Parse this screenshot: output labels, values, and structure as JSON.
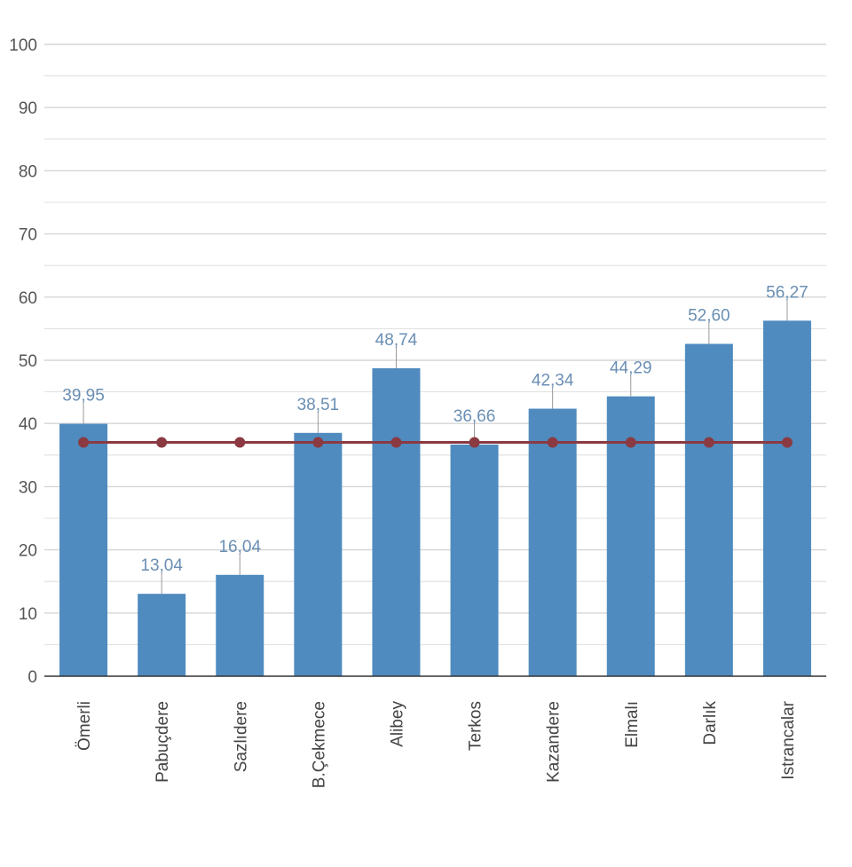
{
  "chart_data": {
    "type": "bar",
    "title": "",
    "xlabel": "",
    "ylabel": "",
    "ylim": [
      0,
      100
    ],
    "yticks": [
      0,
      10,
      20,
      30,
      40,
      50,
      60,
      70,
      80,
      90,
      100
    ],
    "grid": true,
    "categories": [
      "Ömerli",
      "Pabuçdere",
      "Sazlıdere",
      "B.Çekmece",
      "Alibey",
      "Terkos",
      "Kazandere",
      "Elmalı",
      "Darlık",
      "Istrancalar"
    ],
    "series": [
      {
        "type": "bar",
        "values": [
          39.95,
          13.04,
          16.04,
          38.51,
          48.74,
          36.66,
          42.34,
          44.29,
          52.6,
          56.27
        ],
        "labels": [
          "39,95",
          "13,04",
          "16,04",
          "38,51",
          "48,74",
          "36,66",
          "42,34",
          "44,29",
          "52,60",
          "56,27"
        ],
        "color": "#4f8bbf"
      },
      {
        "type": "line",
        "values": [
          37,
          37,
          37,
          37,
          37,
          37,
          37,
          37,
          37,
          37
        ],
        "color": "#8b3a42"
      }
    ]
  },
  "colors": {
    "grid": "#d6d6d6",
    "axis": "#333333",
    "label_stem": "#999999"
  }
}
